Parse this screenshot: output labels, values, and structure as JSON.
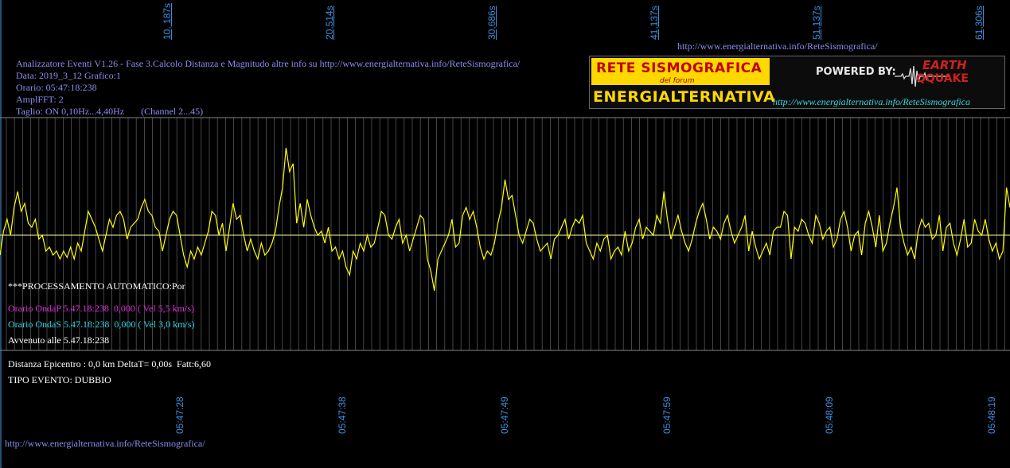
{
  "top_time_ticks": [
    "10, 187s",
    "20,514s",
    "30,686s",
    "41,137s",
    "51,137s",
    "61,306s"
  ],
  "header_url": "http://www.energialternativa.info/ReteSismografica/",
  "info": {
    "line1": "Analizzatore Eventi V1.26 - Fase 3.Calcolo Distanza e Magnitudo altre info su http://www.energialternativa.info/ReteSismografica/",
    "line2": "Data: 2019_3_12 Grafico:1",
    "line3": "Orario: 05:47:18:238",
    "line4": "AmplFFT: 2",
    "line5": "Taglio: ON 0,10Hz...4,40Hz       (Channel 2...45)"
  },
  "logo": {
    "line1": "RETE SISMOGRAFICA",
    "line2": "del forum",
    "line3": "ENERGIALTERNATIVA",
    "powered": "POWERED BY:",
    "earth": "EARTH",
    "quake": "QQUAKE",
    "url": "http://www.energialternativa.info/ReteSismografica"
  },
  "processing": {
    "auto": "***PROCESSAMENTO AUTOMATICO:Por",
    "onda_p": "Orario OndaP 5.47.18:238  0,000 ( Vel 5,5 km/s)",
    "onda_s": "Orario OndaS 5.47.18:238  0,000 ( Vel 3,0 km/s)",
    "avvenuto": "Avvenuto alle 5.47.18:238"
  },
  "result": {
    "distanza": "Distanza Epicentro : 0,0 km DeltaT= 0,00s  Fatt:6,60",
    "tipo": "TIPO EVENTO: DUBBIO"
  },
  "bottom_time_ticks": [
    "05:47:28",
    "05:47:38",
    "05:47:49",
    "05:47:59",
    "05:48:09",
    "05:48:19"
  ],
  "footer_url": "http://www.energialternativa.info/ReteSismografica/",
  "colors": {
    "background": "#000000",
    "trace": "#ffff00",
    "baseline": "#ffffa0",
    "grid": "#555555",
    "axis_text": "#3c8fdc"
  },
  "chart_data": {
    "type": "line",
    "series": [
      {
        "values": [
          -25,
          5,
          20,
          0,
          35,
          55,
          30,
          40,
          15,
          10,
          20,
          -5,
          0,
          -20,
          -15,
          -25,
          -20,
          -30,
          -20,
          -28,
          -15,
          -30,
          -10,
          -20,
          5,
          30,
          20,
          10,
          -5,
          -20,
          0,
          20,
          10,
          25,
          30,
          20,
          -5,
          10,
          15,
          20,
          35,
          45,
          30,
          25,
          10,
          5,
          -20,
          0,
          20,
          30,
          25,
          0,
          -25,
          -40,
          -20,
          -30,
          -15,
          -25,
          -10,
          5,
          30,
          25,
          0,
          15,
          -20,
          10,
          40,
          20,
          25,
          0,
          -20,
          -5,
          -20,
          -30,
          -10,
          -25,
          -20,
          -10,
          5,
          35,
          60,
          110,
          80,
          90,
          15,
          40,
          10,
          45,
          25,
          10,
          0,
          5,
          -10,
          10,
          -20,
          -15,
          -30,
          -20,
          -40,
          -50,
          -20,
          -30,
          -10,
          -20,
          0,
          -15,
          -10,
          10,
          30,
          25,
          0,
          -5,
          10,
          20,
          -10,
          0,
          -20,
          -5,
          10,
          25,
          20,
          -30,
          -45,
          -70,
          -30,
          -20,
          -10,
          0,
          20,
          -15,
          -10,
          25,
          35,
          20,
          30,
          10,
          -15,
          -30,
          -20,
          -25,
          -10,
          15,
          35,
          70,
          45,
          50,
          25,
          0,
          -10,
          5,
          20,
          15,
          -5,
          -20,
          -15,
          -10,
          -30,
          -5,
          0,
          10,
          20,
          -5,
          10,
          20,
          15,
          25,
          -10,
          -20,
          -30,
          -10,
          -20,
          -5,
          0,
          -30,
          -20,
          -15,
          -25,
          5,
          -20,
          -10,
          10,
          20,
          -5,
          10,
          5,
          0,
          25,
          15,
          55,
          20,
          -5,
          10,
          25,
          5,
          -10,
          -20,
          -5,
          15,
          30,
          40,
          20,
          -5,
          10,
          5,
          -5,
          15,
          25,
          5,
          -10,
          0,
          10,
          25,
          -20,
          5,
          -15,
          -30,
          -20,
          -10,
          -25,
          5,
          10,
          10,
          30,
          25,
          -30,
          10,
          5,
          20,
          15,
          0,
          -10,
          25,
          15,
          -5,
          5,
          10,
          -15,
          -5,
          20,
          30,
          10,
          -20,
          0,
          5,
          -25,
          15,
          30,
          10,
          -15,
          25,
          -20,
          -10,
          15,
          35,
          60,
          10,
          -10,
          -25,
          -15,
          -30,
          5,
          20,
          10,
          15,
          -5,
          0,
          25,
          -20,
          10,
          15,
          -10,
          -25,
          -5,
          20,
          -15,
          -10,
          20,
          5,
          0,
          20,
          -5,
          -20,
          -10,
          -30,
          -20,
          60,
          35
        ]
      }
    ]
  }
}
